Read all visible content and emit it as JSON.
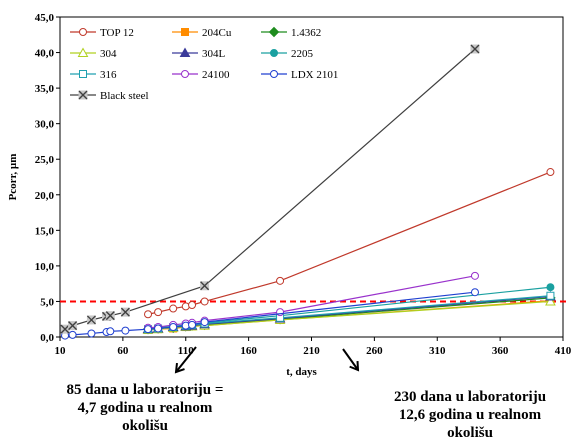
{
  "chart_data": {
    "type": "line",
    "xlabel": "t, days",
    "ylabel": "Pcorr, µm",
    "xlim": [
      10,
      410
    ],
    "ylim": [
      0,
      45
    ],
    "x_ticks": [
      10,
      60,
      110,
      160,
      210,
      260,
      310,
      360,
      410
    ],
    "y_ticks": [
      "0,0",
      "5,0",
      "10,0",
      "15,0",
      "20,0",
      "25,0",
      "30,0",
      "35,0",
      "40,0",
      "45,0"
    ],
    "threshold": 5.0,
    "threshold_color": "#ff0000",
    "legend_position": "top-left",
    "series": [
      {
        "name": "TOP 12",
        "color": "#c0392b",
        "marker": "circle-open",
        "x": [
          80,
          88,
          100,
          110,
          115,
          125,
          185,
          400
        ],
        "y": [
          3.2,
          3.5,
          4.0,
          4.3,
          4.5,
          5.0,
          7.9,
          23.2
        ]
      },
      {
        "name": "204Cu",
        "color": "#ff8c00",
        "marker": "square-filled",
        "x": [
          80,
          88,
          100,
          110,
          115,
          125,
          185,
          400
        ],
        "y": [
          1.0,
          1.1,
          1.2,
          1.4,
          1.5,
          1.6,
          2.4,
          5.1
        ]
      },
      {
        "name": "1.4362",
        "color": "#1e8c1e",
        "marker": "diamond-filled",
        "x": [
          80,
          88,
          100,
          110,
          115,
          125,
          185,
          400
        ],
        "y": [
          1.1,
          1.2,
          1.3,
          1.5,
          1.6,
          1.7,
          2.5,
          5.5
        ]
      },
      {
        "name": "304",
        "color": "#b0d020",
        "marker": "triangle-open",
        "x": [
          80,
          88,
          100,
          110,
          115,
          125,
          185,
          400
        ],
        "y": [
          1.0,
          1.1,
          1.3,
          1.4,
          1.5,
          1.6,
          2.4,
          5.0
        ]
      },
      {
        "name": "304L",
        "color": "#3a3a9a",
        "marker": "triangle-filled",
        "x": [
          80,
          88,
          100,
          110,
          115,
          125,
          185,
          400
        ],
        "y": [
          1.1,
          1.2,
          1.4,
          1.5,
          1.6,
          1.8,
          2.6,
          5.7
        ]
      },
      {
        "name": "2205",
        "color": "#1aa0a0",
        "marker": "circle-filled",
        "x": [
          80,
          88,
          100,
          110,
          115,
          125,
          185,
          400
        ],
        "y": [
          1.2,
          1.3,
          1.5,
          1.7,
          1.8,
          2.0,
          3.0,
          7.0
        ]
      },
      {
        "name": "316",
        "color": "#20a0b0",
        "marker": "square-open",
        "x": [
          80,
          88,
          100,
          110,
          115,
          125,
          185,
          400
        ],
        "y": [
          1.1,
          1.2,
          1.4,
          1.6,
          1.7,
          1.9,
          2.7,
          5.8
        ]
      },
      {
        "name": "24100",
        "color": "#9932cc",
        "marker": "circle-open",
        "x": [
          80,
          88,
          100,
          110,
          115,
          125,
          185,
          340
        ],
        "y": [
          1.3,
          1.4,
          1.7,
          1.9,
          2.0,
          2.3,
          3.5,
          8.6
        ]
      },
      {
        "name": "LDX 2101",
        "color": "#2040d0",
        "marker": "circle-open",
        "x": [
          14,
          20,
          35,
          47,
          50,
          62,
          80,
          88,
          100,
          110,
          115,
          125,
          340
        ],
        "y": [
          0.2,
          0.3,
          0.5,
          0.7,
          0.8,
          0.9,
          1.1,
          1.2,
          1.4,
          1.6,
          1.7,
          2.1,
          6.3
        ]
      },
      {
        "name": "Black steel",
        "color": "#404040",
        "marker": "x-box",
        "x": [
          14,
          20,
          35,
          47,
          50,
          62,
          125,
          340
        ],
        "y": [
          1.1,
          1.6,
          2.4,
          2.9,
          3.0,
          3.5,
          7.2,
          40.5
        ]
      }
    ]
  },
  "annotations": {
    "left": [
      "85 dana u laboratoriju =",
      "4,7 godina u realnom",
      "okolišu"
    ],
    "right": [
      "230 dana u laboratoriju",
      "12,6 godina u realnom",
      "okolišu"
    ]
  }
}
